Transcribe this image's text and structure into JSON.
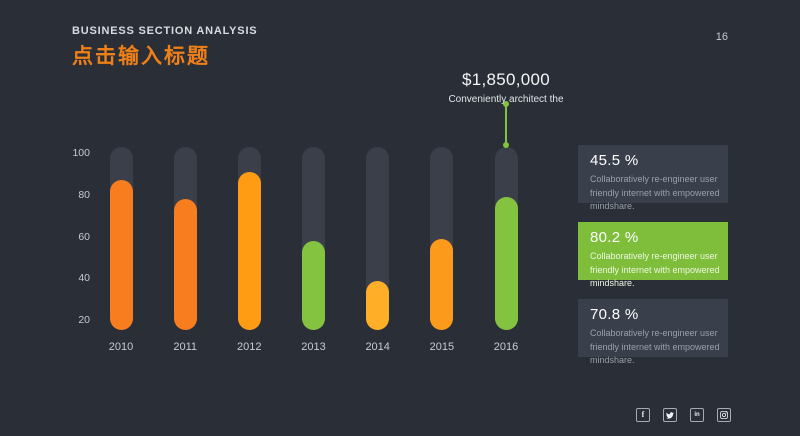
{
  "page": {
    "number": "16",
    "background": "#2a2e37"
  },
  "header": {
    "kicker": "BUSINESS SECTION ANALYSIS",
    "title": "点击输入标题",
    "title_color": "#ef8018"
  },
  "annotation": {
    "amount": "$1,850,000",
    "caption": "Conveniently architect the",
    "target_category": "2016",
    "line_color": "#84c340"
  },
  "chart_data": {
    "type": "bar",
    "title": "",
    "xlabel": "",
    "ylabel": "",
    "categories": [
      "2010",
      "2011",
      "2012",
      "2013",
      "2014",
      "2015",
      "2016"
    ],
    "values": [
      87,
      78,
      91,
      58,
      39,
      59,
      79
    ],
    "bar_colors": [
      "#f87d1e",
      "#f87d1e",
      "#ff9c14",
      "#84c340",
      "#ffae28",
      "#fb9a1b",
      "#84c340"
    ],
    "track_color": "#3a3f4a",
    "yticks": [
      100,
      80,
      60,
      40,
      20
    ],
    "ylim": [
      15,
      100
    ],
    "grid": false,
    "legend": "none"
  },
  "stats": [
    {
      "pct": "45.5 %",
      "desc_lines": [
        "Collaboratively re-engineer user",
        "friendly internet with empowered",
        "mindshare."
      ],
      "bg": "#3a404b",
      "variant": "dark"
    },
    {
      "pct": "80.2 %",
      "desc_lines": [
        "Collaboratively re-engineer user",
        "friendly internet with empowered",
        "mindshare."
      ],
      "bg": "#7fbe3b",
      "variant": "green"
    },
    {
      "pct": "70.8 %",
      "desc_lines": [
        "Collaboratively re-engineer user",
        "friendly internet with empowered",
        "mindshare."
      ],
      "bg": "#3a404b",
      "variant": "dark"
    }
  ],
  "footer": {
    "social": [
      {
        "name": "facebook"
      },
      {
        "name": "twitter"
      },
      {
        "name": "linkedin"
      },
      {
        "name": "instagram"
      }
    ]
  }
}
